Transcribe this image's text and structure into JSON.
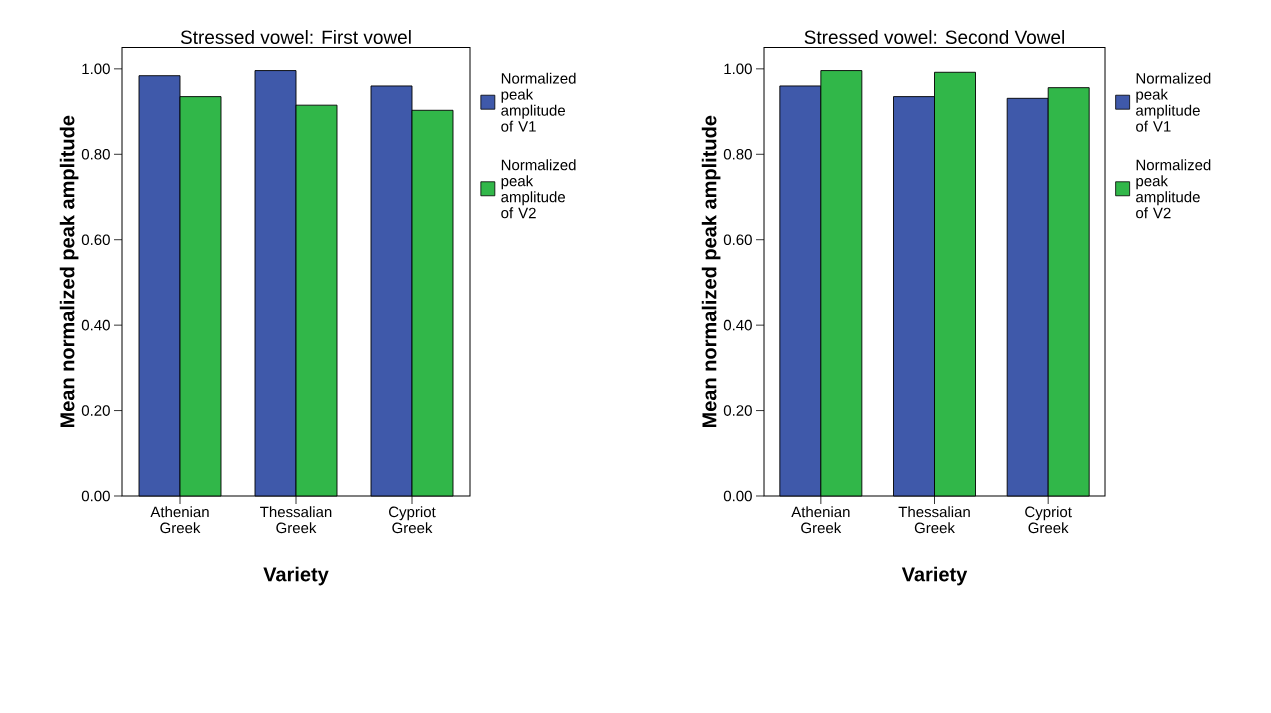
{
  "chart_data": [
    {
      "type": "bar",
      "title": "Stressed vowel: First vowel",
      "xlabel": "Variety",
      "ylabel": "Mean normalized peak amplitude",
      "categories": [
        "Athenian Greek",
        "Thessalian Greek",
        "Cypriot Greek"
      ],
      "series": [
        {
          "name": "Normalized peak amplitude of V1",
          "color": "#3f59aa",
          "values": [
            0.984,
            0.996,
            0.96
          ]
        },
        {
          "name": "Normalized peak amplitude of V2",
          "color": "#31b749",
          "values": [
            0.935,
            0.915,
            0.903
          ]
        }
      ],
      "ylim": [
        0,
        1.05
      ],
      "yticks": [
        {
          "value": 0,
          "label": "0.00"
        },
        {
          "value": 0.2,
          "label": "0.20"
        },
        {
          "value": 0.4,
          "label": "0.40"
        },
        {
          "value": 0.6,
          "label": "0.60"
        },
        {
          "value": 0.8,
          "label": "0.80"
        },
        {
          "value": 1,
          "label": "1.00"
        }
      ],
      "legend": "right"
    },
    {
      "type": "bar",
      "title": "Stressed vowel: Second Vowel",
      "xlabel": "Variety",
      "ylabel": "Mean normalized peak amplitude",
      "categories": [
        "Athenian Greek",
        "Thessalian Greek",
        "Cypriot Greek"
      ],
      "series": [
        {
          "name": "Normalized peak amplitude of V1",
          "color": "#3f59aa",
          "values": [
            0.96,
            0.935,
            0.931
          ]
        },
        {
          "name": "Normalized peak amplitude of V2",
          "color": "#31b749",
          "values": [
            0.996,
            0.992,
            0.956
          ]
        }
      ],
      "ylim": [
        0,
        1.05
      ],
      "yticks": [
        {
          "value": 0,
          "label": "0.00"
        },
        {
          "value": 0.2,
          "label": "0.20"
        },
        {
          "value": 0.4,
          "label": "0.40"
        },
        {
          "value": 0.6,
          "label": "0.60"
        },
        {
          "value": 0.8,
          "label": "0.80"
        },
        {
          "value": 1,
          "label": "1.00"
        }
      ],
      "legend": "right"
    }
  ]
}
